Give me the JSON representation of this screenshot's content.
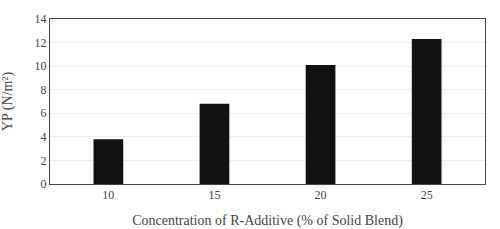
{
  "chart_data": {
    "type": "bar",
    "categories": [
      "10",
      "15",
      "20",
      "25"
    ],
    "values": [
      3.8,
      6.8,
      10.1,
      12.3
    ],
    "color": "#111111",
    "xlabel": "Concentration of R-Additive (% of Solid Blend)",
    "ylabel": "YP (N/m²)",
    "ylim": [
      0,
      14
    ],
    "yticks": [
      0,
      2,
      4,
      6,
      8,
      10,
      12,
      14
    ],
    "grid": true
  }
}
